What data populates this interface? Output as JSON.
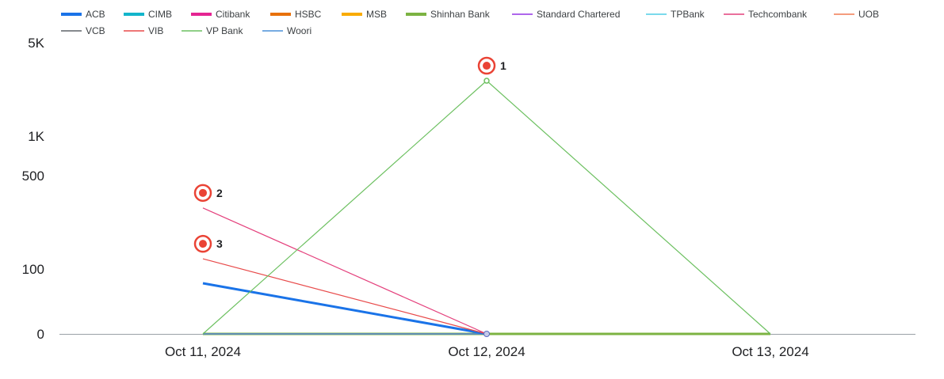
{
  "chart_data": {
    "type": "line",
    "title": "",
    "xlabel": "",
    "ylabel": "",
    "y_scale": "symlog",
    "y_ticks": [
      {
        "value": 0,
        "label": "0"
      },
      {
        "value": 100,
        "label": "100"
      },
      {
        "value": 500,
        "label": "500"
      },
      {
        "value": 1000,
        "label": "1K"
      },
      {
        "value": 5000,
        "label": "5K"
      }
    ],
    "x": [
      "Oct 11, 2024",
      "Oct 12, 2024",
      "Oct 13, 2024"
    ],
    "legend_position": "top-left",
    "grid": false,
    "series": [
      {
        "name": "ACB",
        "color": "#1a73e8",
        "emphasis": "thick",
        "values": [
          55,
          0,
          null
        ]
      },
      {
        "name": "CIMB",
        "color": "#12b5cb",
        "emphasis": "thick",
        "values": [
          0,
          0,
          null
        ]
      },
      {
        "name": "Citibank",
        "color": "#e52592",
        "emphasis": "thick",
        "values": [
          0,
          0,
          null
        ]
      },
      {
        "name": "HSBC",
        "color": "#e8710a",
        "emphasis": "thick",
        "values": [
          0,
          0,
          null
        ]
      },
      {
        "name": "MSB",
        "color": "#f9ab00",
        "emphasis": "thick",
        "values": [
          0,
          0,
          null
        ]
      },
      {
        "name": "Shinhan Bank",
        "color": "#7cb342",
        "emphasis": "thick",
        "values": [
          0,
          0,
          0
        ]
      },
      {
        "name": "Standard Chartered",
        "color": "#9334e6",
        "emphasis": "thin",
        "values": [
          0,
          0,
          null
        ]
      },
      {
        "name": "TPBank",
        "color": "#4ecde6",
        "emphasis": "thin",
        "values": [
          0,
          0,
          null
        ]
      },
      {
        "name": "Techcombank",
        "color": "#e4407c",
        "emphasis": "thin",
        "values": [
          290,
          0,
          null
        ]
      },
      {
        "name": "UOB",
        "color": "#f07b52",
        "emphasis": "thin",
        "values": [
          0,
          0,
          null
        ]
      },
      {
        "name": "VCB",
        "color": "#5f6368",
        "emphasis": "thin",
        "values": [
          0,
          0,
          null
        ]
      },
      {
        "name": "VIB",
        "color": "#e84a4a",
        "emphasis": "thin",
        "values": [
          120,
          0,
          null
        ]
      },
      {
        "name": "VP Bank",
        "color": "#6cc060",
        "emphasis": "thin",
        "values": [
          0,
          2600,
          0
        ]
      },
      {
        "name": "Woori",
        "color": "#4a90d9",
        "emphasis": "thin",
        "values": [
          0,
          0,
          null
        ]
      }
    ],
    "annotations": [
      {
        "label": "1",
        "series": "VP Bank",
        "x": "Oct 12, 2024"
      },
      {
        "label": "2",
        "series": "Techcombank",
        "x": "Oct 11, 2024"
      },
      {
        "label": "3",
        "series": "VIB",
        "x": "Oct 11, 2024"
      }
    ],
    "marker_color": "#ea4335"
  }
}
